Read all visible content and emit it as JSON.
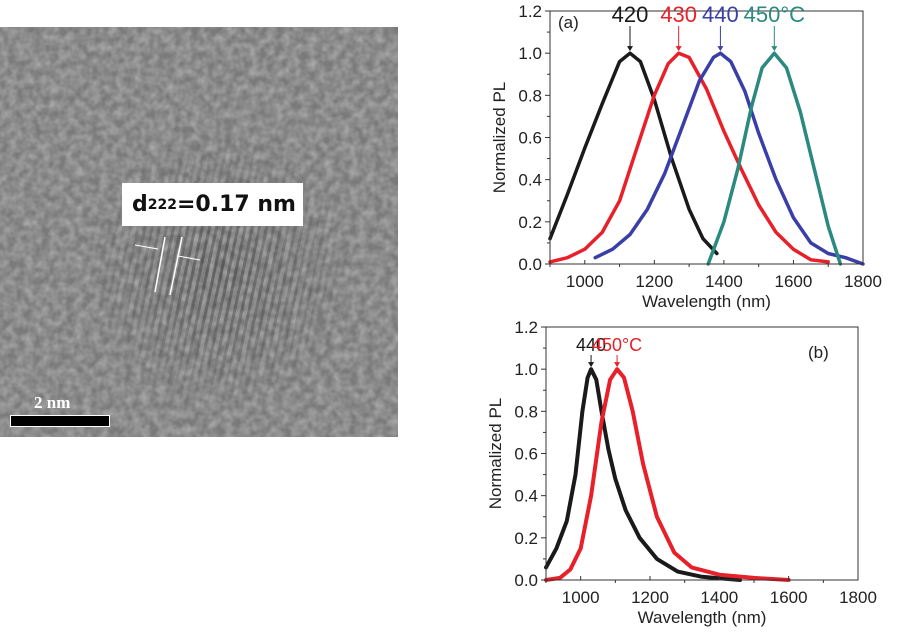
{
  "tem_image": {
    "annotation_prefix": "d",
    "annotation_subscript": "222",
    "annotation_value": "=0.17 nm",
    "scale_bar_label": "2 nm"
  },
  "chart_data": [
    {
      "type": "line",
      "panel_label": "(a)",
      "title": "",
      "xlabel": "Wavelength (nm)",
      "ylabel": "Normalized PL",
      "xlim": [
        900,
        1800
      ],
      "ylim": [
        0.0,
        1.2
      ],
      "xticks": [
        "1000",
        "1200",
        "1400",
        "1600",
        "1800"
      ],
      "yticks": [
        "0.0",
        "0.2",
        "0.4",
        "0.6",
        "0.8",
        "1.0",
        "1.2"
      ],
      "grid": false,
      "legend": "none",
      "annotations": [
        {
          "text": "420",
          "color": "#1a1a1a",
          "peak_x": 1130
        },
        {
          "text": "430",
          "color": "#e8202a",
          "peak_x": 1270
        },
        {
          "text": "440",
          "color": "#3a3fa8",
          "peak_x": 1390
        },
        {
          "text": "450°C",
          "color": "#2a8a80",
          "peak_x": 1545
        }
      ],
      "series": [
        {
          "name": "420",
          "color": "#1a1a1a",
          "x": [
            900,
            950,
            1000,
            1050,
            1080,
            1100,
            1130,
            1160,
            1200,
            1250,
            1300,
            1340,
            1380
          ],
          "y": [
            0.12,
            0.33,
            0.55,
            0.76,
            0.88,
            0.96,
            1.0,
            0.96,
            0.78,
            0.5,
            0.26,
            0.12,
            0.05
          ]
        },
        {
          "name": "430",
          "color": "#e8202a",
          "x": [
            900,
            950,
            1000,
            1050,
            1100,
            1150,
            1200,
            1240,
            1270,
            1300,
            1350,
            1400,
            1450,
            1500,
            1550,
            1600,
            1650,
            1700
          ],
          "y": [
            0.01,
            0.03,
            0.07,
            0.15,
            0.3,
            0.55,
            0.8,
            0.95,
            1.0,
            0.98,
            0.83,
            0.63,
            0.45,
            0.28,
            0.15,
            0.07,
            0.02,
            0.01
          ]
        },
        {
          "name": "440",
          "color": "#3a3fa8",
          "x": [
            1030,
            1080,
            1130,
            1180,
            1230,
            1280,
            1330,
            1370,
            1390,
            1420,
            1460,
            1500,
            1550,
            1600,
            1650,
            1700,
            1750,
            1800
          ],
          "y": [
            0.03,
            0.07,
            0.14,
            0.26,
            0.43,
            0.65,
            0.87,
            0.98,
            1.0,
            0.96,
            0.82,
            0.62,
            0.4,
            0.22,
            0.1,
            0.05,
            0.03,
            0.0
          ]
        },
        {
          "name": "450°C",
          "color": "#2a8a80",
          "x": [
            1355,
            1400,
            1440,
            1480,
            1510,
            1545,
            1580,
            1620,
            1660,
            1700,
            1735
          ],
          "y": [
            0.0,
            0.2,
            0.45,
            0.75,
            0.93,
            1.0,
            0.93,
            0.72,
            0.45,
            0.18,
            0.0
          ]
        }
      ]
    },
    {
      "type": "line",
      "panel_label": "(b)",
      "title": "",
      "xlabel": "Wavelength (nm)",
      "ylabel": "Normalized PL",
      "xlim": [
        900,
        1800
      ],
      "ylim": [
        0.0,
        1.2
      ],
      "xticks": [
        "1000",
        "1200",
        "1400",
        "1600",
        "1800"
      ],
      "yticks": [
        "0.0",
        "0.2",
        "0.4",
        "0.6",
        "0.8",
        "1.0",
        "1.2"
      ],
      "grid": false,
      "legend": "none",
      "annotations": [
        {
          "text": "440",
          "color": "#1a1a1a",
          "peak_x": 1030
        },
        {
          "text": "450°C",
          "color": "#e8202a",
          "peak_x": 1105
        }
      ],
      "series": [
        {
          "name": "440",
          "color": "#1a1a1a",
          "x": [
            900,
            930,
            960,
            985,
            1005,
            1020,
            1030,
            1045,
            1060,
            1080,
            1100,
            1130,
            1170,
            1220,
            1280,
            1350,
            1420,
            1460
          ],
          "y": [
            0.06,
            0.15,
            0.28,
            0.5,
            0.8,
            0.96,
            1.0,
            0.95,
            0.8,
            0.62,
            0.48,
            0.33,
            0.2,
            0.1,
            0.04,
            0.015,
            0.005,
            0.0
          ]
        },
        {
          "name": "450°C",
          "color": "#e8202a",
          "x": [
            900,
            940,
            970,
            1000,
            1030,
            1060,
            1085,
            1105,
            1125,
            1150,
            1180,
            1220,
            1270,
            1320,
            1400,
            1500,
            1600
          ],
          "y": [
            0.0,
            0.01,
            0.05,
            0.15,
            0.4,
            0.75,
            0.95,
            1.0,
            0.96,
            0.8,
            0.55,
            0.3,
            0.13,
            0.06,
            0.025,
            0.01,
            0.0
          ]
        }
      ]
    }
  ]
}
